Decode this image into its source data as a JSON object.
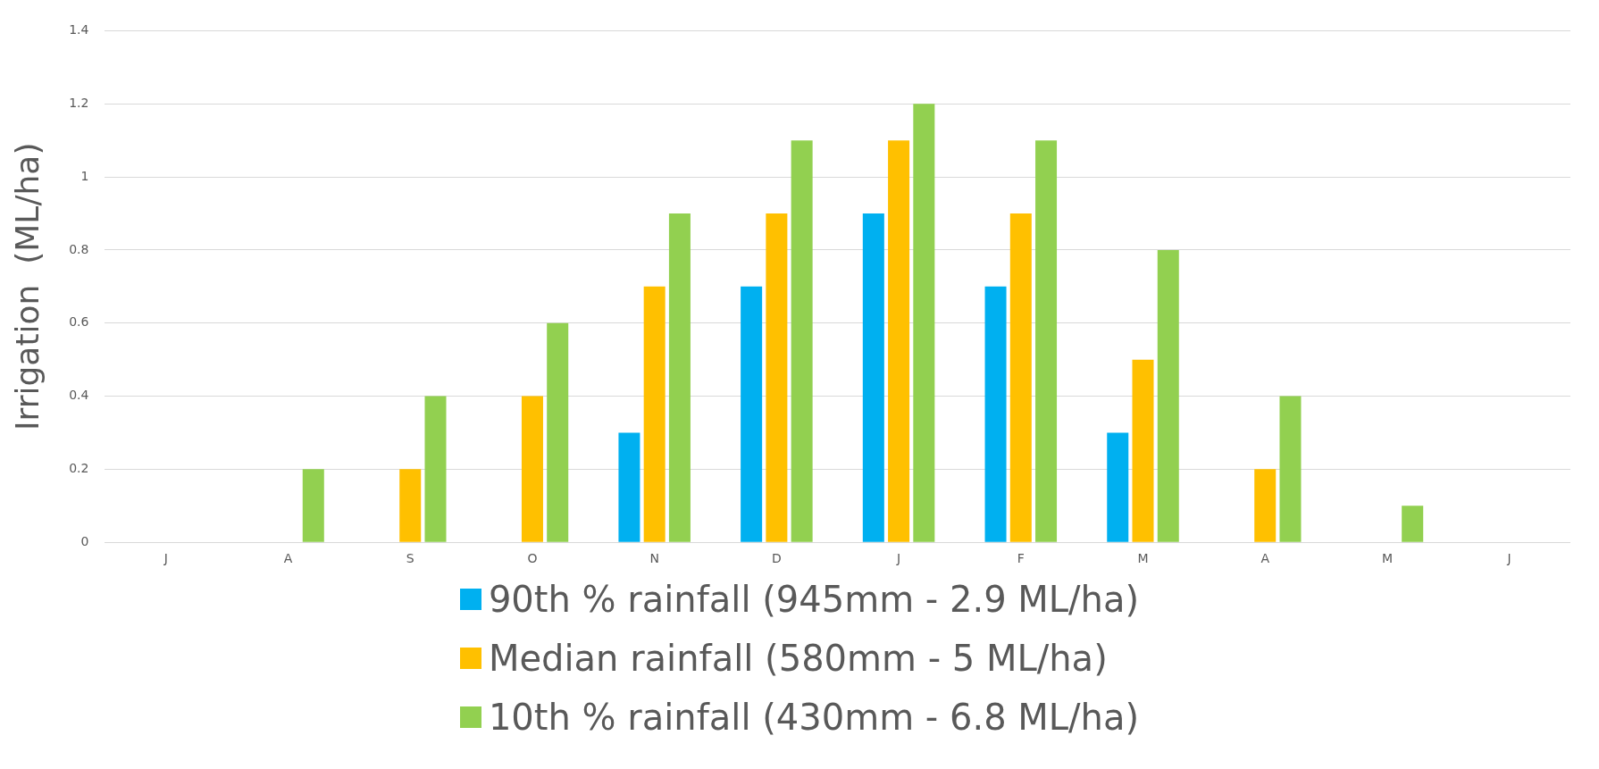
{
  "chart_data": {
    "type": "bar",
    "ylabel": "Irrigation  (ML/ha)",
    "categories": [
      "J",
      "A",
      "S",
      "O",
      "N",
      "D",
      "J",
      "F",
      "M",
      "A",
      "M",
      "J"
    ],
    "series": [
      {
        "name": "90th % rainfall  (945mm - 2.9 ML/ha)",
        "color": "#00b0f0",
        "values": [
          0,
          0,
          0,
          0,
          0.3,
          0.7,
          0.9,
          0.7,
          0.3,
          0,
          0,
          0
        ]
      },
      {
        "name": "Median rainfall (580mm - 5 ML/ha)",
        "color": "#ffc000",
        "values": [
          0,
          0,
          0.2,
          0.4,
          0.7,
          0.9,
          1.1,
          0.9,
          0.5,
          0.2,
          0,
          0
        ]
      },
      {
        "name": "10th % rainfall (430mm - 6.8 ML/ha)",
        "color": "#92d050",
        "values": [
          0,
          0.2,
          0.4,
          0.6,
          0.9,
          1.1,
          1.2,
          1.1,
          0.8,
          0.4,
          0.1,
          0
        ]
      }
    ],
    "ylim": [
      0,
      1.4
    ],
    "yticks": [
      0,
      0.2,
      0.4,
      0.6,
      0.8,
      1,
      1.2,
      1.4
    ],
    "grid": "y",
    "legend": "bottom"
  }
}
